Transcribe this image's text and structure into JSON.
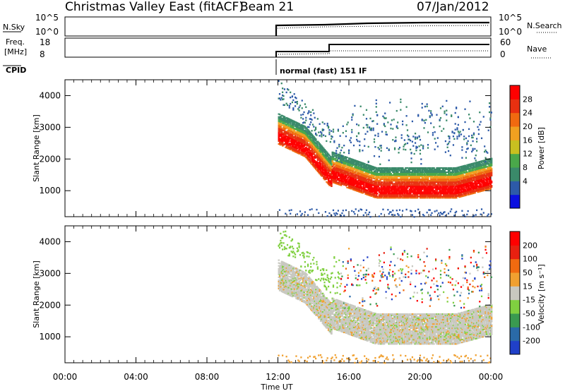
{
  "header": {
    "title": "Christmas Valley East (fitACF)",
    "beam": "Beam 21",
    "date": "07/Jan/2012"
  },
  "top_panels": {
    "nsky": {
      "label": "N.Sky",
      "ticks": [
        "10^5",
        "10^0"
      ],
      "right_label": "N.Search",
      "right_ticks": [
        "10^5",
        "10^0"
      ]
    },
    "freq": {
      "label_line1": "Freq.",
      "label_line2": "[MHz]",
      "ticks": [
        "18",
        "8"
      ],
      "right_label": "Nave",
      "right_ticks": [
        "60",
        "0"
      ]
    },
    "cpid": {
      "label": "CPID",
      "mode_text": "normal (fast) 151 IF"
    }
  },
  "chart_data": [
    {
      "type": "heatmap",
      "name": "power",
      "ylabel": "Slant Range [km]",
      "xlabel": "Time UT",
      "x_ticks": [
        "00:00",
        "04:00",
        "08:00",
        "12:00",
        "16:00",
        "20:00",
        "00:00"
      ],
      "y_ticks": [
        "4000",
        "3000",
        "2000",
        "1000"
      ],
      "ylim": [
        180,
        4500
      ],
      "xlim_hours": [
        0,
        24
      ],
      "data_start_hour": 12,
      "colorbar": {
        "label": "Power [dB]",
        "ticks": [
          "28",
          "24",
          "20",
          "16",
          "12",
          "8",
          "4"
        ],
        "colors": [
          "#0b10e0",
          "#2d5aa8",
          "#3a8a6a",
          "#4aa84a",
          "#c8c020",
          "#f0a020",
          "#f06a10",
          "#e83010",
          "#ff0000"
        ]
      },
      "bands": [
        {
          "start": 12.0,
          "end": 13.5,
          "r0": 2700,
          "r1": 2300,
          "level": "high"
        },
        {
          "start": 13.5,
          "end": 15.0,
          "r0": 2300,
          "r1": 1300,
          "level": "high"
        },
        {
          "start": 15.0,
          "end": 17.5,
          "r0": 1500,
          "r1": 1000,
          "level": "max"
        },
        {
          "start": 17.5,
          "end": 22.0,
          "r0": 1000,
          "r1": 1000,
          "level": "max"
        },
        {
          "start": 22.0,
          "end": 24.0,
          "r0": 1000,
          "r1": 1300,
          "level": "max"
        }
      ]
    },
    {
      "type": "heatmap",
      "name": "velocity",
      "ylabel": "Slant Range [km]",
      "xlabel": "Time UT",
      "x_ticks": [
        "00:00",
        "04:00",
        "08:00",
        "12:00",
        "16:00",
        "20:00",
        "00:00"
      ],
      "y_ticks": [
        "4000",
        "3000",
        "2000",
        "1000"
      ],
      "ylim": [
        180,
        4500
      ],
      "xlim_hours": [
        0,
        24
      ],
      "data_start_hour": 12,
      "colorbar": {
        "label": "Velocity [m s⁻¹]",
        "ticks": [
          "200",
          "100",
          "50",
          "15",
          "-15",
          "-50",
          "-100",
          "-200"
        ],
        "colors": [
          "#2040c8",
          "#2a6aa8",
          "#3a9a50",
          "#80d040",
          "#c8c8c0",
          "#f0a030",
          "#f06a10",
          "#e82010",
          "#ff0000"
        ]
      }
    }
  ]
}
